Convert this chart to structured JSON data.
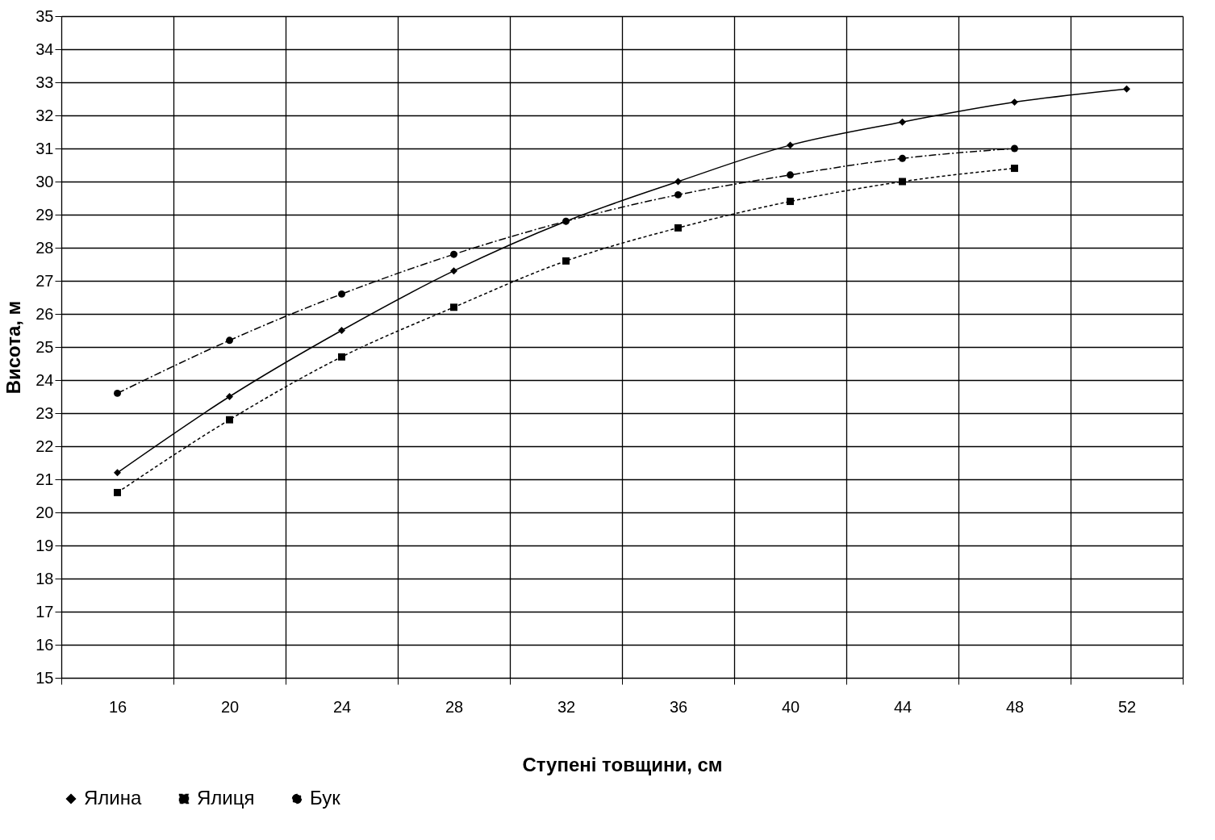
{
  "chart_data": {
    "type": "line",
    "xlabel": "Ступені товщини, см",
    "ylabel": "Висота, м",
    "categories": [
      "16",
      "20",
      "24",
      "28",
      "32",
      "36",
      "40",
      "44",
      "48",
      "52"
    ],
    "series": [
      {
        "name": "Ялина",
        "color": "#000000",
        "marker": "diamond",
        "line_style": "solid",
        "values": [
          21.2,
          23.5,
          25.5,
          27.3,
          28.8,
          30.0,
          31.1,
          31.8,
          32.4,
          32.8
        ]
      },
      {
        "name": "Ялиця",
        "color": "#000000",
        "marker": "square",
        "line_style": "dotted",
        "values": [
          20.6,
          22.8,
          24.7,
          26.2,
          27.6,
          28.6,
          29.4,
          30.0,
          30.4,
          null
        ]
      },
      {
        "name": "Бук",
        "color": "#000000",
        "marker": "circle",
        "line_style": "dashed",
        "values": [
          23.6,
          25.2,
          26.6,
          27.8,
          28.8,
          29.6,
          30.2,
          30.7,
          31.0,
          null
        ]
      }
    ],
    "ylim": [
      15,
      35
    ],
    "yticks": [
      15,
      16,
      17,
      18,
      19,
      20,
      21,
      22,
      23,
      24,
      25,
      26,
      27,
      28,
      29,
      30,
      31,
      32,
      33,
      34,
      35
    ],
    "grid": true,
    "legend": "bottom"
  }
}
